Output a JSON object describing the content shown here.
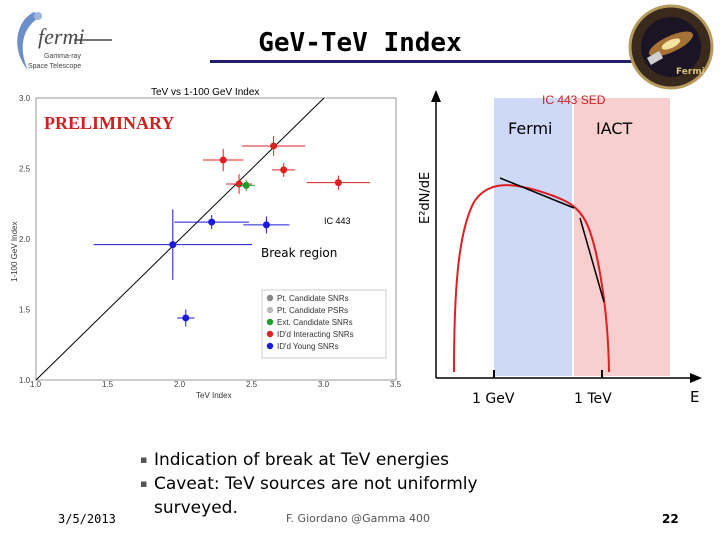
{
  "slide": {
    "title": "GeV-TeV Index",
    "date": "3/5/2013",
    "footer": "F. Giordano @Gamma 400",
    "page_number": "22",
    "bullets": [
      "Indication of break at TeV energies",
      "Caveat: TeV sources are not uniformly surveyed."
    ],
    "bullet_lines": [
      "Indication of break at TeV energies",
      "Caveat: TeV sources are not uniformly",
      "surveyed."
    ]
  },
  "logos": {
    "fermi_name": "fermi",
    "fermi_sub1": "Gamma-ray",
    "fermi_sub2": "Space Telescope",
    "badge_text": "Fermi"
  },
  "colors": {
    "title_bar": "#1f1f6b",
    "fermi_band": "#cdd9f7",
    "iact_band": "#f7cfcf",
    "red": "#e02020",
    "blue": "#1a1adb",
    "green": "#1e9e2a",
    "orange": "#e07a20",
    "gray": "#888888"
  },
  "chart_data": [
    {
      "type": "scatter",
      "title": "TeV vs 1-100 GeV Index",
      "xlabel": "TeV Index",
      "ylabel": "1-100 GeV Index",
      "xlim": [
        1.0,
        3.5
      ],
      "ylim": [
        1.0,
        3.0
      ],
      "xticks": [
        1.0,
        1.5,
        2.0,
        2.5,
        3.0,
        3.5
      ],
      "yticks": [
        1.0,
        1.5,
        2.0,
        2.5,
        3.0
      ],
      "xtick_labels": [
        "1.0",
        "1.5",
        "2.0",
        "2.5",
        "3.0",
        "3.5"
      ],
      "ytick_labels": [
        "1.0",
        "1.5",
        "2.0",
        "2.5",
        "3.0"
      ],
      "diagonal": true,
      "watermark": "PRELIMINARY",
      "annotations": [
        "IC 443",
        "Break region"
      ],
      "legend_position": "bottom-right",
      "legend": [
        {
          "label": "Pt. Candidate SNRs",
          "color": "#888888"
        },
        {
          "label": "Pt. Candidate PSRs",
          "color": "#bbbbbb"
        },
        {
          "label": "Ext. Candidate SNRs",
          "color": "#1e9e2a"
        },
        {
          "label": "ID'd Interacting SNRs",
          "color": "#e02020"
        },
        {
          "label": "ID'd Young SNRs",
          "color": "#1a1adb"
        }
      ],
      "series": [
        {
          "name": "ID'd Interacting SNRs",
          "color": "#e02020",
          "points": [
            {
              "x": 2.3,
              "y": 2.56,
              "xerr": 0.14,
              "yerr": 0.08
            },
            {
              "x": 2.65,
              "y": 2.66,
              "xerr": 0.22,
              "yerr": 0.07
            },
            {
              "x": 2.72,
              "y": 2.49,
              "xerr": 0.08,
              "yerr": 0.05
            },
            {
              "x": 3.1,
              "y": 2.4,
              "xerr": 0.22,
              "yerr": 0.05
            },
            {
              "x": 2.41,
              "y": 2.39,
              "xerr": 0.09,
              "yerr": 0.07
            }
          ]
        },
        {
          "name": "Ext. Candidate SNRs",
          "color": "#1e9e2a",
          "points": [
            {
              "x": 2.46,
              "y": 2.38,
              "xerr": 0.06,
              "yerr": 0.04
            }
          ]
        },
        {
          "name": "ID'd Young SNRs",
          "color": "#1a1adb",
          "points": [
            {
              "x": 2.22,
              "y": 2.12,
              "xerr": 0.26,
              "yerr": 0.05
            },
            {
              "x": 2.6,
              "y": 2.1,
              "xerr": 0.16,
              "yerr": 0.06
            },
            {
              "x": 1.95,
              "y": 1.96,
              "xerr": 0.55,
              "yerr": 0.25
            },
            {
              "x": 2.04,
              "y": 1.44,
              "xerr": 0.06,
              "yerr": 0.06
            }
          ]
        }
      ]
    },
    {
      "type": "line",
      "title": "IC 443 SED",
      "ylabel": "E²dN/dE",
      "xlabel": "E",
      "x_ticks": [
        "1 GeV",
        "1 TeV"
      ],
      "bands": [
        "Fermi",
        "IACT"
      ],
      "series": [
        {
          "name": "SED model",
          "color": "#e02020"
        },
        {
          "name": "Fermi fit",
          "color": "#000000"
        },
        {
          "name": "IACT fit",
          "color": "#000000"
        }
      ]
    }
  ]
}
